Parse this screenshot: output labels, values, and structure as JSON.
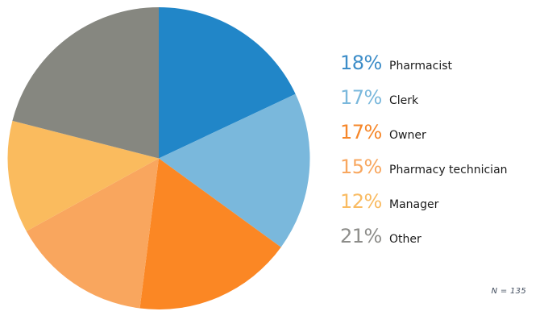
{
  "chart_data": {
    "type": "pie",
    "categories": [
      "Pharmacist",
      "Clerk",
      "Owner",
      "Pharmacy technician",
      "Manager",
      "Other"
    ],
    "values": [
      18,
      17,
      17,
      15,
      12,
      21
    ],
    "unit": "%",
    "slice_colors": [
      "#2186C8",
      "#7AB8DC",
      "#FB8724",
      "#F9A65E",
      "#FABB5E",
      "#868780"
    ],
    "start_angle_deg": 0,
    "direction": "clockwise",
    "legend_position": "right",
    "title": "",
    "sample_note": "N = 135"
  },
  "legend": {
    "items": [
      {
        "pct": "18%",
        "label": "Pharmacist",
        "color": "#3D8DC8"
      },
      {
        "pct": "17%",
        "label": "Clerk",
        "color": "#7AB8DC"
      },
      {
        "pct": "17%",
        "label": "Owner",
        "color": "#F6872A"
      },
      {
        "pct": "15%",
        "label": "Pharmacy technician",
        "color": "#F8A75F"
      },
      {
        "pct": "12%",
        "label": "Manager",
        "color": "#F9BB62"
      },
      {
        "pct": "21%",
        "label": "Other",
        "color": "#8D8D8A"
      }
    ]
  },
  "footnote": "N = 135"
}
